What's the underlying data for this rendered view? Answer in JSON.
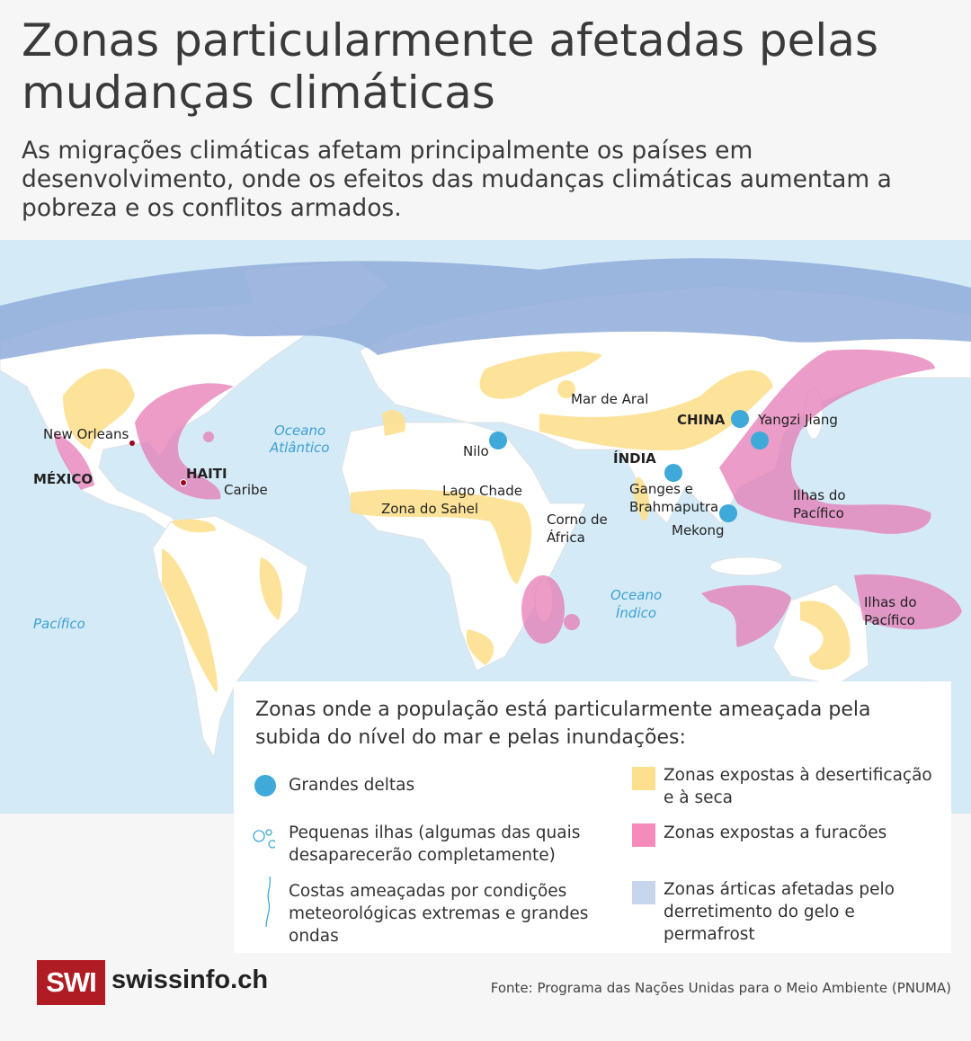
{
  "title": "Zonas particularmente afetadas pelas mudanças climáticas",
  "subtitle": "As migrações climáticas afetam principalmente os países em desenvolvimento, onde os efeitos das mudanças climáticas aumentam a pobreza e os conflitos armados.",
  "colors": {
    "ocean": "#d4ebf7",
    "land": "#ffffff",
    "delta": "#3fa9d9",
    "drought": "#fde08e",
    "hurricane": "#e67bb5",
    "arctic": "#8facd9",
    "brand": "#b01c24"
  },
  "map_labels": {
    "new_orleans": "New Orleans",
    "mexico": "MÉXICO",
    "haiti": "HAITI",
    "caribe": "Caribe",
    "oceano_atlantico_1": "Oceano",
    "oceano_atlantico_2": "Atlântico",
    "pacifico_west": "Pacífico",
    "nilo": "Nilo",
    "lago_chade": "Lago Chade",
    "zona_sahel": "Zona do Sahel",
    "corno_1": "Corno de",
    "corno_2": "África",
    "mar_aral": "Mar de Aral",
    "china": "CHINA",
    "yangzi": "Yangzi Jiang",
    "india": "ÍNDIA",
    "ganges_1": "Ganges e",
    "ganges_2": "Brahmaputra",
    "mekong": "Mekong",
    "ilhas_1a": "Ilhas do",
    "ilhas_1b": "Pacífico",
    "oceano_indico_1": "Oceano",
    "oceano_indico_2": "Índico",
    "ilhas_2a": "Ilhas do",
    "ilhas_2b": "Pacífico"
  },
  "legend": {
    "title": "Zonas onde a população está particularmente ameaçada pela subida do nível do mar e pelas inundações:",
    "items": [
      {
        "label": "Grandes deltas",
        "icon": "filled-circle"
      },
      {
        "label": "Pequenas ilhas (algumas das quais desaparecerão completamente)",
        "icon": "small-circles"
      },
      {
        "label": "Costas ameaçadas por condições meteorológicas extremas e grandes ondas",
        "icon": "coastline-wave"
      },
      {
        "label": "Zonas expostas à desertificação e à seca",
        "icon": "yellow-swatch"
      },
      {
        "label": "Zonas expostas a furacões",
        "icon": "pink-swatch"
      },
      {
        "label": "Zonas árticas afetadas pelo derretimento do gelo e permafrost",
        "icon": "blue-swatch"
      }
    ]
  },
  "footer": {
    "logo": "SWI",
    "brand": "swissinfo.ch",
    "source": "Fonte: Programa das Nações Unidas para o Meio Ambiente (PNUMA)"
  }
}
